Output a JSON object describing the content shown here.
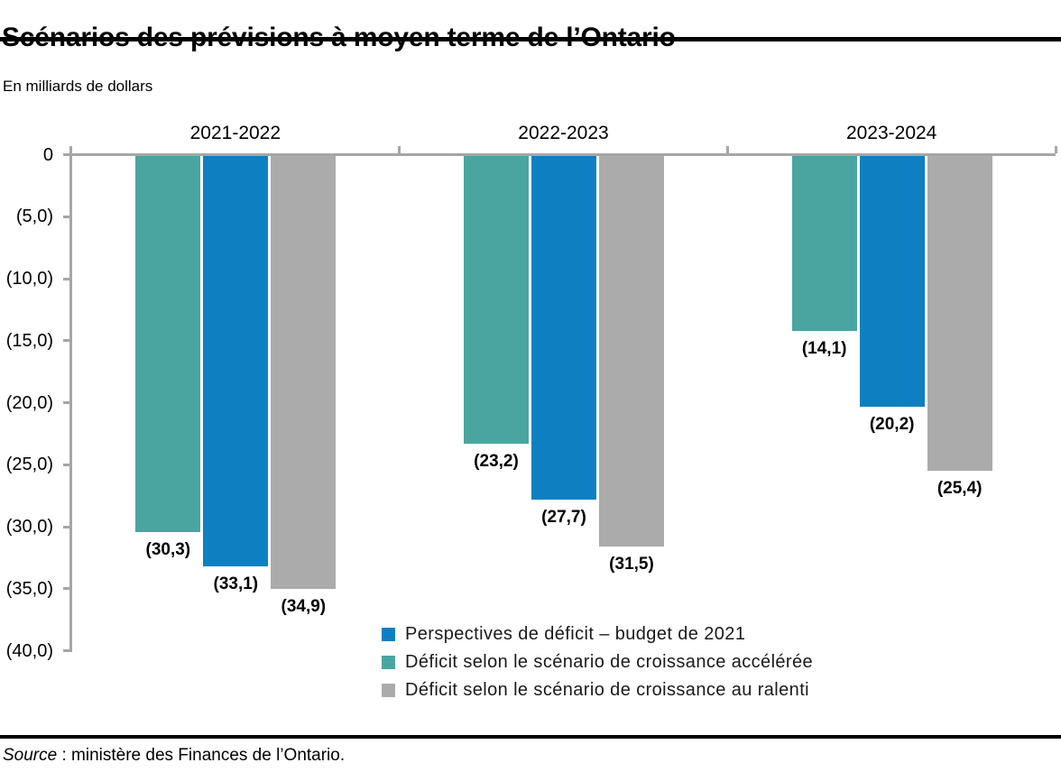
{
  "title": "Scénarios des prévisions à moyen terme de l’Ontario",
  "subtitle": "En milliards de dollars",
  "source": {
    "label": "Source",
    "rest": " : ministère des Finances de l’Ontario."
  },
  "chart_data": {
    "type": "bar",
    "title": "Scénarios des prévisions à moyen terme de l’Ontario",
    "unit_label": "En milliards de dollars",
    "categories": [
      "2021-2022",
      "2022-2023",
      "2023-2024"
    ],
    "series": [
      {
        "key": "acceleree",
        "name": "Déficit selon le scénario de croissance accélérée",
        "color": "#4AA5A0",
        "values": [
          -30.3,
          -23.2,
          -14.1
        ],
        "labels": [
          "(30,3)",
          "(23,2)",
          "(14,1)"
        ]
      },
      {
        "key": "budget",
        "name": "Perspectives de déficit – budget de 2021",
        "color": "#0E80C1",
        "values": [
          -33.1,
          -27.7,
          -20.2
        ],
        "labels": [
          "(33,1)",
          "(27,7)",
          "(20,2)"
        ]
      },
      {
        "key": "ralenti",
        "name": "Déficit selon le scénario de croissance au ralenti",
        "color": "#ABABAB",
        "values": [
          -34.9,
          -31.5,
          -25.4
        ],
        "labels": [
          "(34,9)",
          "(31,5)",
          "(25,4)"
        ]
      }
    ],
    "legend": [
      {
        "key": "budget",
        "label": "Perspectives de déficit – budget de 2021",
        "color": "#0E80C1"
      },
      {
        "key": "acceleree",
        "label": "Déficit selon le scénario de croissance accélérée",
        "color": "#4AA5A0"
      },
      {
        "key": "ralenti",
        "label": "Déficit selon le scénario de croissance au ralenti",
        "color": "#ABABAB"
      }
    ],
    "y_axis": {
      "ylim": [
        -40,
        0
      ],
      "tick_values": [
        0,
        -5,
        -10,
        -15,
        -20,
        -25,
        -30,
        -35,
        -40
      ],
      "tick_labels": [
        "0",
        "(5,0)",
        "(10,0)",
        "(15,0)",
        "(20,0)",
        "(25,0)",
        "(30,0)",
        "(35,0)",
        "(40,0)"
      ]
    },
    "grid": false,
    "legend_position": "inside-bottom-right",
    "axis_color": "#A6A6A6"
  }
}
